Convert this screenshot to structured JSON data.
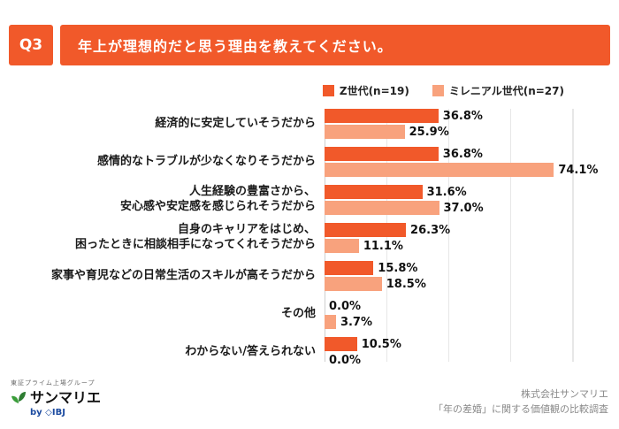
{
  "header": {
    "badge": "Q3",
    "title": "年上が理想的だと思う理由を教えてください。"
  },
  "legend": [
    {
      "label": "Z世代(n=19)",
      "color": "#f1592a"
    },
    {
      "label": "ミレニアル世代(n=27)",
      "color": "#f8a27d"
    }
  ],
  "chart_data": {
    "type": "bar",
    "orientation": "horizontal",
    "title": "年上が理想的だと思う理由を教えてください。",
    "value_suffix": "%",
    "xlim": [
      0,
      80
    ],
    "grid": true,
    "legend_position": "top-right",
    "categories": [
      "経済的に安定していそうだから",
      "感情的なトラブルが少なくなりそうだから",
      "人生経験の豊富さから、\n安心感や安定感を感じられそうだから",
      "自身のキャリアをはじめ、\n困ったときに相談相手になってくれそうだから",
      "家事や育児などの日常生活のスキルが高そうだから",
      "その他",
      "わからない/答えられない"
    ],
    "series": [
      {
        "name": "Z世代(n=19)",
        "color": "#f1592a",
        "values": [
          36.8,
          36.8,
          31.6,
          26.3,
          15.8,
          0.0,
          10.5
        ]
      },
      {
        "name": "ミレニアル世代(n=27)",
        "color": "#f8a27d",
        "values": [
          25.9,
          74.1,
          37.0,
          11.1,
          18.5,
          3.7,
          0.0
        ]
      }
    ]
  },
  "footer": {
    "logo_tagline": "東証プライム上場グループ",
    "logo_brand": "サンマリエ",
    "logo_sub": "by ◇IBJ",
    "source_line1": "株式会社サンマリエ",
    "source_line2": "「年の差婚」に関する価値観の比較調査"
  }
}
